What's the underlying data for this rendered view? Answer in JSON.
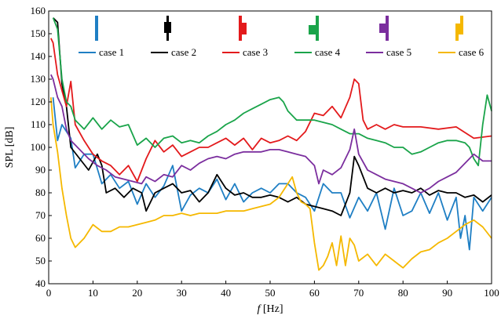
{
  "chart_data": {
    "type": "line",
    "title": "",
    "xlabel_var": "f",
    "xlabel_unit": " [Hz]",
    "ylabel": "SPL [dB]",
    "xlim": [
      0,
      100
    ],
    "ylim": [
      40,
      160
    ],
    "xticks": [
      0,
      10,
      20,
      30,
      40,
      50,
      60,
      70,
      80,
      90,
      100
    ],
    "yticks": [
      40,
      50,
      60,
      70,
      80,
      90,
      100,
      110,
      120,
      130,
      140,
      150,
      160
    ],
    "grid": false,
    "legend_position": "top",
    "series": [
      {
        "name": "case 1",
        "color": "#1f7fc4",
        "x": [
          1,
          2,
          3,
          5,
          6,
          8,
          10,
          12,
          14,
          16,
          18,
          20,
          22,
          24,
          26,
          28,
          30,
          32,
          34,
          36,
          38,
          40,
          42,
          44,
          46,
          48,
          50,
          52,
          54,
          56,
          58,
          60,
          62,
          64,
          66,
          68,
          70,
          72,
          74,
          76,
          78,
          80,
          82,
          84,
          86,
          88,
          90,
          92,
          93,
          94,
          95,
          96,
          98,
          100
        ],
        "y": [
          122,
          103,
          110,
          104,
          91,
          97,
          97,
          84,
          88,
          82,
          85,
          75,
          84,
          78,
          83,
          92,
          72,
          79,
          82,
          80,
          86,
          77,
          84,
          76,
          80,
          82,
          80,
          84,
          84,
          80,
          78,
          72,
          84,
          80,
          80,
          69,
          78,
          72,
          80,
          64,
          82,
          70,
          72,
          80,
          71,
          80,
          68,
          78,
          60,
          70,
          55,
          78,
          72,
          78
        ]
      },
      {
        "name": "case 2",
        "color": "#000000",
        "x": [
          1,
          2,
          3,
          4,
          5,
          7,
          9,
          11,
          12,
          13,
          15,
          17,
          19,
          21,
          22,
          24,
          26,
          28,
          30,
          32,
          34,
          36,
          38,
          40,
          42,
          44,
          46,
          48,
          50,
          52,
          54,
          56,
          58,
          60,
          62,
          64,
          66,
          67,
          68,
          69,
          70,
          72,
          74,
          76,
          78,
          80,
          82,
          84,
          86,
          88,
          90,
          92,
          94,
          96,
          98,
          100
        ],
        "y": [
          157,
          155,
          128,
          118,
          100,
          95,
          90,
          97,
          92,
          80,
          82,
          78,
          82,
          80,
          72,
          80,
          82,
          84,
          80,
          81,
          76,
          80,
          88,
          82,
          79,
          80,
          78,
          78,
          79,
          78,
          76,
          78,
          75,
          74,
          73,
          72,
          70,
          75,
          80,
          96,
          92,
          82,
          80,
          82,
          80,
          81,
          80,
          82,
          79,
          81,
          80,
          80,
          78,
          79,
          76,
          79
        ]
      },
      {
        "name": "case 3",
        "color": "#e31a1c",
        "x": [
          0.5,
          1,
          2,
          3,
          4,
          5,
          6,
          8,
          10,
          12,
          14,
          16,
          18,
          20,
          22,
          24,
          26,
          28,
          30,
          32,
          34,
          36,
          38,
          40,
          42,
          44,
          46,
          48,
          50,
          52,
          54,
          56,
          58,
          60,
          62,
          64,
          66,
          68,
          69,
          70,
          71,
          72,
          74,
          76,
          78,
          80,
          84,
          88,
          92,
          96,
          100
        ],
        "y": [
          148,
          146,
          132,
          125,
          118,
          129,
          110,
          103,
          97,
          94,
          92,
          88,
          92,
          85,
          95,
          103,
          98,
          101,
          96,
          98,
          100,
          100,
          102,
          104,
          101,
          104,
          99,
          104,
          102,
          103,
          105,
          103,
          107,
          115,
          114,
          118,
          113,
          122,
          130,
          128,
          112,
          108,
          110,
          108,
          110,
          109,
          109,
          108,
          109,
          104,
          105
        ]
      },
      {
        "name": "case 4",
        "color": "#1aa44a",
        "x": [
          1,
          2,
          3,
          4,
          5,
          6,
          8,
          10,
          12,
          14,
          16,
          18,
          20,
          22,
          24,
          26,
          28,
          30,
          32,
          34,
          36,
          38,
          40,
          42,
          44,
          46,
          48,
          50,
          52,
          53,
          54,
          56,
          58,
          60,
          62,
          64,
          66,
          68,
          70,
          72,
          74,
          76,
          78,
          80,
          82,
          84,
          86,
          88,
          90,
          92,
          94,
          95,
          96,
          97,
          98,
          99,
          100
        ],
        "y": [
          157,
          152,
          130,
          120,
          118,
          112,
          108,
          113,
          108,
          112,
          109,
          110,
          101,
          104,
          100,
          104,
          105,
          102,
          103,
          102,
          105,
          107,
          110,
          112,
          115,
          117,
          119,
          121,
          122,
          120,
          116,
          112,
          112,
          112,
          111,
          110,
          108,
          106,
          106,
          104,
          103,
          102,
          100,
          100,
          97,
          98,
          100,
          102,
          103,
          103,
          102,
          100,
          95,
          92,
          110,
          123,
          116
        ]
      },
      {
        "name": "case 5",
        "color": "#7b2e9e",
        "x": [
          0.5,
          1,
          2,
          3,
          4,
          5,
          7,
          9,
          11,
          13,
          15,
          17,
          19,
          21,
          22,
          24,
          26,
          28,
          30,
          32,
          34,
          36,
          38,
          40,
          42,
          44,
          46,
          48,
          50,
          52,
          54,
          56,
          58,
          60,
          61,
          62,
          64,
          66,
          68,
          69,
          70,
          72,
          74,
          76,
          78,
          80,
          82,
          84,
          86,
          88,
          90,
          92,
          94,
          96,
          98,
          100
        ],
        "y": [
          132,
          130,
          122,
          118,
          108,
          103,
          99,
          95,
          92,
          90,
          87,
          86,
          85,
          84,
          87,
          85,
          88,
          87,
          92,
          90,
          93,
          95,
          96,
          95,
          97,
          98,
          98,
          98,
          99,
          99,
          98,
          97,
          96,
          92,
          84,
          90,
          88,
          91,
          99,
          108,
          97,
          90,
          88,
          86,
          85,
          84,
          82,
          80,
          82,
          85,
          87,
          89,
          93,
          97,
          94,
          94
        ]
      },
      {
        "name": "case 6",
        "color": "#f5b800",
        "x": [
          0.5,
          1,
          2,
          3,
          4,
          5,
          6,
          8,
          10,
          12,
          14,
          16,
          18,
          20,
          22,
          24,
          26,
          28,
          30,
          32,
          34,
          36,
          38,
          40,
          42,
          44,
          46,
          48,
          50,
          52,
          54,
          55,
          56,
          57,
          58,
          59,
          60,
          61,
          62,
          63,
          64,
          65,
          66,
          67,
          68,
          69,
          70,
          72,
          74,
          76,
          78,
          80,
          82,
          84,
          86,
          88,
          90,
          92,
          94,
          96,
          98,
          100
        ],
        "y": [
          122,
          110,
          98,
          82,
          70,
          60,
          56,
          60,
          66,
          63,
          63,
          65,
          65,
          66,
          67,
          68,
          70,
          70,
          71,
          70,
          71,
          71,
          71,
          72,
          72,
          72,
          73,
          74,
          75,
          78,
          84,
          87,
          80,
          76,
          75,
          73,
          58,
          46,
          48,
          52,
          58,
          48,
          61,
          48,
          60,
          57,
          50,
          53,
          48,
          53,
          50,
          47,
          51,
          54,
          55,
          58,
          60,
          63,
          66,
          68,
          65,
          60
        ]
      }
    ]
  }
}
